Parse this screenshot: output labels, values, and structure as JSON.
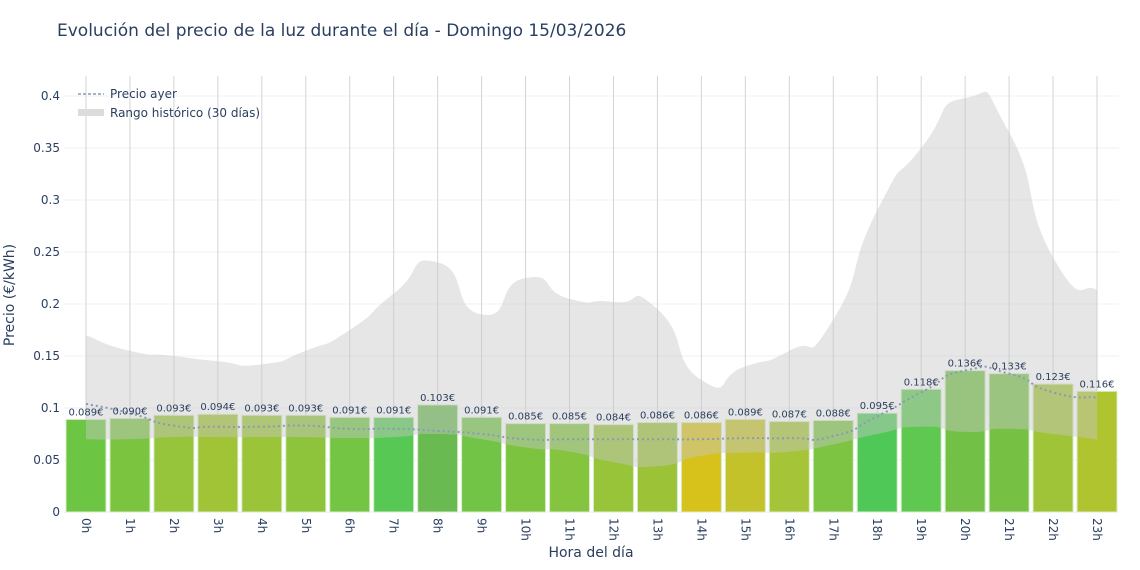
{
  "chart_data": {
    "type": "bar",
    "title": "Evolución del precio de la luz durante el día - Domingo 15/03/2026",
    "xlabel": "Hora del día",
    "ylabel": "Precio (€/kWh)",
    "ylim": [
      0,
      0.42
    ],
    "yticks": [
      0,
      0.05,
      0.1,
      0.15,
      0.2,
      0.25,
      0.3,
      0.35,
      0.4
    ],
    "grid": true,
    "legend_position": "top-left",
    "categories": [
      "0h",
      "1h",
      "2h",
      "3h",
      "4h",
      "5h",
      "6h",
      "7h",
      "8h",
      "9h",
      "10h",
      "11h",
      "12h",
      "13h",
      "14h",
      "15h",
      "16h",
      "17h",
      "18h",
      "19h",
      "20h",
      "21h",
      "22h",
      "23h"
    ],
    "values": [
      0.089,
      0.09,
      0.093,
      0.094,
      0.093,
      0.093,
      0.091,
      0.091,
      0.103,
      0.091,
      0.085,
      0.085,
      0.084,
      0.086,
      0.086,
      0.089,
      0.087,
      0.088,
      0.095,
      0.118,
      0.136,
      0.133,
      0.123,
      0.116
    ],
    "data_labels": [
      "0.089€",
      "0.090€",
      "0.093€",
      "0.094€",
      "0.093€",
      "0.093€",
      "0.091€",
      "0.091€",
      "0.103€",
      "0.091€",
      "0.085€",
      "0.085€",
      "0.084€",
      "0.086€",
      "0.086€",
      "0.089€",
      "0.087€",
      "0.088€",
      "0.095€",
      "0.118€",
      "0.136€",
      "0.133€",
      "0.123€",
      "0.116€"
    ],
    "bar_colors": [
      "#6cc644",
      "#7ac440",
      "#96c43a",
      "#a0c436",
      "#9cc438",
      "#8ec43c",
      "#74c544",
      "#58c854",
      "#6aba52",
      "#72c446",
      "#7cc440",
      "#84c43e",
      "#98c43a",
      "#9cc238",
      "#d6c21a",
      "#c4c22a",
      "#a6c438",
      "#7cc442",
      "#50c858",
      "#5ec850",
      "#72c146",
      "#76c144",
      "#a0c438",
      "#b0c430"
    ],
    "series": [
      {
        "name": "Precio ayer",
        "type": "line",
        "style": "dotted",
        "color": "#8a9ab4",
        "values": [
          0.104,
          0.095,
          0.083,
          0.082,
          0.082,
          0.083,
          0.08,
          0.08,
          0.078,
          0.075,
          0.07,
          0.07,
          0.07,
          0.07,
          0.07,
          0.071,
          0.071,
          0.073,
          0.092,
          0.115,
          0.136,
          0.133,
          0.115,
          0.11
        ]
      },
      {
        "name": "Rango histórico (30 días)",
        "type": "band",
        "color": "#d9d9d9",
        "upper": [
          0.17,
          0.155,
          0.15,
          0.145,
          0.142,
          0.155,
          0.175,
          0.21,
          0.24,
          0.19,
          0.225,
          0.205,
          0.202,
          0.195,
          0.127,
          0.14,
          0.155,
          0.185,
          0.29,
          0.35,
          0.398,
          0.365,
          0.245,
          0.213
        ],
        "lower": [
          0.07,
          0.07,
          0.072,
          0.072,
          0.072,
          0.072,
          0.071,
          0.072,
          0.075,
          0.07,
          0.062,
          0.058,
          0.048,
          0.044,
          0.054,
          0.057,
          0.058,
          0.065,
          0.075,
          0.082,
          0.077,
          0.08,
          0.075,
          0.07
        ]
      }
    ]
  }
}
